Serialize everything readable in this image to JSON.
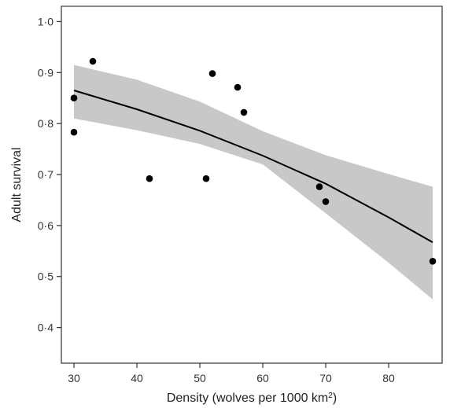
{
  "chart_data": {
    "type": "scatter",
    "title": "",
    "xlabel": "Density (wolves per 1000 km",
    "xlabel_sup": "2",
    "xlabel_close": ")",
    "ylabel": "Adult survival",
    "xlim": [
      28,
      88.5
    ],
    "ylim": [
      0.33,
      1.03
    ],
    "x_ticks": [
      30,
      40,
      50,
      60,
      70,
      80
    ],
    "x_tick_labels": [
      "30",
      "40",
      "50",
      "60",
      "70",
      "80"
    ],
    "y_ticks": [
      0.4,
      0.5,
      0.6,
      0.7,
      0.8,
      0.9,
      1.0
    ],
    "y_tick_labels": [
      "0·4",
      "0·5",
      "0·6",
      "0·7",
      "0·8",
      "0·9",
      "1·0"
    ],
    "grid": false,
    "points": [
      {
        "x": 30,
        "y": 0.85
      },
      {
        "x": 30,
        "y": 0.783
      },
      {
        "x": 33,
        "y": 0.922
      },
      {
        "x": 42,
        "y": 0.692
      },
      {
        "x": 51,
        "y": 0.692
      },
      {
        "x": 52,
        "y": 0.898
      },
      {
        "x": 56,
        "y": 0.871
      },
      {
        "x": 57,
        "y": 0.822
      },
      {
        "x": 69,
        "y": 0.676
      },
      {
        "x": 70,
        "y": 0.647
      },
      {
        "x": 87,
        "y": 0.53
      }
    ],
    "fit_line": {
      "x": [
        30,
        40,
        50,
        60,
        70,
        80,
        87
      ],
      "y": [
        0.865,
        0.828,
        0.786,
        0.737,
        0.682,
        0.616,
        0.567
      ]
    },
    "confidence_band": {
      "x": [
        30,
        40,
        50,
        60,
        70,
        80,
        87
      ],
      "upper": [
        0.915,
        0.886,
        0.843,
        0.785,
        0.738,
        0.701,
        0.676
      ],
      "lower": [
        0.81,
        0.787,
        0.76,
        0.72,
        0.624,
        0.527,
        0.455
      ]
    },
    "colors": {
      "band": "#c8c8c8",
      "line": "#000000",
      "points": "#000000",
      "axes": "#333333"
    }
  }
}
